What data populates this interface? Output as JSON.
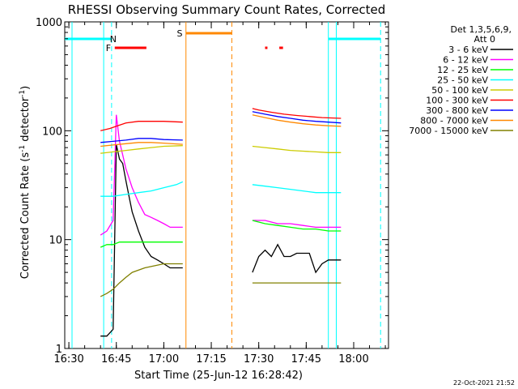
{
  "chart_data": {
    "type": "line",
    "title": "RHESSI Observing Summary Count Rates, Corrected",
    "xlabel": "Start Time (25-Jun-12 16:28:42)",
    "ylabel_main": "Corrected Count Rate (s",
    "ylabel_sup1": "-1",
    "ylabel_mid": " detector",
    "ylabel_sup2": "-1",
    "ylabel_end": ")",
    "y_scale": "log",
    "ylim": [
      1,
      1000
    ],
    "xlim": [
      "16:28:42",
      "18:11:00"
    ],
    "x_ticks": [
      "16:30",
      "16:45",
      "17:00",
      "17:15",
      "17:30",
      "17:45",
      "18:00"
    ],
    "y_ticks": [
      "1",
      "10",
      "100",
      "1000"
    ],
    "timestamp": "22-Oct-2021 21:52",
    "legend_header": [
      "Det 1,3,5,6,9,",
      "Att 0"
    ],
    "series": [
      {
        "name": "3 - 6 keV",
        "color": "#000000"
      },
      {
        "name": "6 - 12 keV",
        "color": "#ff00ff"
      },
      {
        "name": "12 - 25 keV",
        "color": "#00ff00"
      },
      {
        "name": "25 - 50 keV",
        "color": "#00ffff"
      },
      {
        "name": "50 - 100 keV",
        "color": "#cccc00"
      },
      {
        "name": "100 - 300 keV",
        "color": "#ff0000"
      },
      {
        "name": "300 - 800 keV",
        "color": "#0000ff"
      },
      {
        "name": "800 - 7000 keV",
        "color": "#ff8800"
      },
      {
        "name": "7000 - 15000 keV",
        "color": "#808000"
      }
    ],
    "segments": [
      {
        "range": [
          "16:40",
          "17:06"
        ],
        "values": {
          "3 - 6 keV": [
            [
              "16:40",
              1.3
            ],
            [
              "16:42",
              1.3
            ],
            [
              "16:44",
              1.5
            ],
            [
              "16:45",
              75
            ],
            [
              "16:46",
              55
            ],
            [
              "16:47",
              50
            ],
            [
              "16:48",
              35
            ],
            [
              "16:49",
              25
            ],
            [
              "16:50",
              18
            ],
            [
              "16:52",
              12
            ],
            [
              "16:54",
              8.5
            ],
            [
              "16:56",
              7
            ],
            [
              "16:58",
              6.5
            ],
            [
              "17:00",
              6
            ],
            [
              "17:02",
              5.5
            ],
            [
              "17:04",
              5.5
            ],
            [
              "17:06",
              5.5
            ]
          ],
          "6 - 12 keV": [
            [
              "16:40",
              11
            ],
            [
              "16:42",
              12
            ],
            [
              "16:44",
              15
            ],
            [
              "16:45",
              140
            ],
            [
              "16:46",
              80
            ],
            [
              "16:47",
              60
            ],
            [
              "16:48",
              45
            ],
            [
              "16:50",
              30
            ],
            [
              "16:52",
              22
            ],
            [
              "16:54",
              17
            ],
            [
              "16:56",
              16
            ],
            [
              "16:58",
              15
            ],
            [
              "17:00",
              14
            ],
            [
              "17:02",
              13
            ],
            [
              "17:04",
              13
            ],
            [
              "17:06",
              13
            ]
          ],
          "12 - 25 keV": [
            [
              "16:40",
              8.5
            ],
            [
              "16:42",
              9
            ],
            [
              "16:44",
              9
            ],
            [
              "16:46",
              9.5
            ],
            [
              "16:50",
              9.5
            ],
            [
              "16:55",
              9.5
            ],
            [
              "17:00",
              9.5
            ],
            [
              "17:06",
              9.5
            ]
          ],
          "25 - 50 keV": [
            [
              "16:40",
              25
            ],
            [
              "16:44",
              25
            ],
            [
              "16:48",
              26
            ],
            [
              "16:52",
              27
            ],
            [
              "16:56",
              28
            ],
            [
              "17:00",
              30
            ],
            [
              "17:04",
              32
            ],
            [
              "17:06",
              34
            ]
          ],
          "50 - 100 keV": [
            [
              "16:40",
              62
            ],
            [
              "16:44",
              64
            ],
            [
              "16:48",
              66
            ],
            [
              "16:52",
              68
            ],
            [
              "16:56",
              70
            ],
            [
              "17:00",
              72
            ],
            [
              "17:06",
              73
            ]
          ],
          "100 - 300 keV": [
            [
              "16:40",
              100
            ],
            [
              "16:43",
              105
            ],
            [
              "16:45",
              110
            ],
            [
              "16:48",
              118
            ],
            [
              "16:52",
              122
            ],
            [
              "16:56",
              122
            ],
            [
              "17:00",
              122
            ],
            [
              "17:06",
              120
            ]
          ],
          "300 - 800 keV": [
            [
              "16:40",
              78
            ],
            [
              "16:44",
              80
            ],
            [
              "16:48",
              82
            ],
            [
              "16:52",
              85
            ],
            [
              "16:56",
              85
            ],
            [
              "17:00",
              83
            ],
            [
              "17:06",
              82
            ]
          ],
          "800 - 7000 keV": [
            [
              "16:40",
              72
            ],
            [
              "16:44",
              74
            ],
            [
              "16:48",
              76
            ],
            [
              "16:52",
              78
            ],
            [
              "16:56",
              78
            ],
            [
              "17:00",
              77
            ],
            [
              "17:06",
              75
            ]
          ],
          "7000 - 15000 keV": [
            [
              "16:40",
              3
            ],
            [
              "16:42",
              3.2
            ],
            [
              "16:44",
              3.5
            ],
            [
              "16:46",
              4
            ],
            [
              "16:48",
              4.5
            ],
            [
              "16:50",
              5
            ],
            [
              "16:54",
              5.5
            ],
            [
              "17:00",
              6
            ],
            [
              "17:06",
              6
            ]
          ]
        }
      },
      {
        "range": [
          "17:28",
          "17:56"
        ],
        "values": {
          "3 - 6 keV": [
            [
              "17:28",
              5
            ],
            [
              "17:30",
              7
            ],
            [
              "17:32",
              8
            ],
            [
              "17:34",
              7
            ],
            [
              "17:36",
              9
            ],
            [
              "17:38",
              7
            ],
            [
              "17:40",
              7
            ],
            [
              "17:42",
              7.5
            ],
            [
              "17:44",
              7.5
            ],
            [
              "17:46",
              7.5
            ],
            [
              "17:48",
              5
            ],
            [
              "17:50",
              6
            ],
            [
              "17:52",
              6.5
            ],
            [
              "17:54",
              6.5
            ],
            [
              "17:56",
              6.5
            ]
          ],
          "6 - 12 keV": [
            [
              "17:28",
              15
            ],
            [
              "17:32",
              15
            ],
            [
              "17:36",
              14
            ],
            [
              "17:40",
              14
            ],
            [
              "17:44",
              13.5
            ],
            [
              "17:48",
              13
            ],
            [
              "17:52",
              13
            ],
            [
              "17:56",
              13
            ]
          ],
          "12 - 25 keV": [
            [
              "17:28",
              15
            ],
            [
              "17:32",
              14
            ],
            [
              "17:36",
              13.5
            ],
            [
              "17:40",
              13
            ],
            [
              "17:44",
              12.5
            ],
            [
              "17:48",
              12.5
            ],
            [
              "17:52",
              12
            ],
            [
              "17:56",
              12
            ]
          ],
          "25 - 50 keV": [
            [
              "17:28",
              32
            ],
            [
              "17:32",
              31
            ],
            [
              "17:36",
              30
            ],
            [
              "17:40",
              29
            ],
            [
              "17:44",
              28
            ],
            [
              "17:48",
              27
            ],
            [
              "17:52",
              27
            ],
            [
              "17:56",
              27
            ]
          ],
          "50 - 100 keV": [
            [
              "17:28",
              72
            ],
            [
              "17:32",
              70
            ],
            [
              "17:36",
              68
            ],
            [
              "17:40",
              66
            ],
            [
              "17:44",
              65
            ],
            [
              "17:48",
              64
            ],
            [
              "17:52",
              63
            ],
            [
              "17:56",
              63
            ]
          ],
          "100 - 300 keV": [
            [
              "17:28",
              160
            ],
            [
              "17:30",
              155
            ],
            [
              "17:34",
              148
            ],
            [
              "17:38",
              142
            ],
            [
              "17:42",
              138
            ],
            [
              "17:46",
              135
            ],
            [
              "17:50",
              132
            ],
            [
              "17:56",
              130
            ]
          ],
          "300 - 800 keV": [
            [
              "17:28",
              150
            ],
            [
              "17:32",
              142
            ],
            [
              "17:36",
              135
            ],
            [
              "17:40",
              130
            ],
            [
              "17:44",
              125
            ],
            [
              "17:48",
              122
            ],
            [
              "17:52",
              120
            ],
            [
              "17:56",
              118
            ]
          ],
          "800 - 7000 keV": [
            [
              "17:28",
              140
            ],
            [
              "17:32",
              132
            ],
            [
              "17:36",
              125
            ],
            [
              "17:40",
              120
            ],
            [
              "17:44",
              116
            ],
            [
              "17:48",
              113
            ],
            [
              "17:52",
              111
            ],
            [
              "17:56",
              110
            ]
          ],
          "7000 - 15000 keV": [
            [
              "17:28",
              4
            ],
            [
              "17:32",
              4
            ],
            [
              "17:36",
              4
            ],
            [
              "17:40",
              4
            ],
            [
              "17:44",
              4
            ],
            [
              "17:48",
              4
            ],
            [
              "17:52",
              4
            ],
            [
              "17:56",
              4
            ]
          ]
        }
      }
    ],
    "flags": [
      {
        "label": "N",
        "color": "#00ffff",
        "spans": [
          [
            "16:28:42",
            "16:43:30"
          ],
          [
            "17:52:00",
            "18:08:30"
          ]
        ],
        "label_at": "16:44:00"
      },
      {
        "label": "F",
        "color": "#ff0000",
        "spans": [
          [
            "16:44:30",
            "16:54:30"
          ]
        ],
        "label_at": "16:42:30"
      },
      {
        "label": "S",
        "color": "#ff8800",
        "spans": [
          [
            "17:07:00",
            "17:21:30"
          ]
        ],
        "label_at": "17:05:00"
      },
      {
        "label": "",
        "color": "#ff0000",
        "spans": [
          [
            "17:32:00",
            "17:32:45"
          ],
          [
            "17:36:30",
            "17:37:40"
          ]
        ],
        "label_at": ""
      }
    ],
    "vertical_markers": [
      {
        "color": "#00ffff",
        "style": "dashed",
        "t": "16:43:30"
      },
      {
        "color": "#ff8800",
        "style": "solid",
        "t": "17:07:00"
      },
      {
        "color": "#ff8800",
        "style": "dashed",
        "t": "17:21:30"
      },
      {
        "color": "#00ffff",
        "style": "solid",
        "t": "17:52:00"
      },
      {
        "color": "#00ffff",
        "style": "dashed",
        "t": "18:08:30"
      },
      {
        "color": "#00ffff",
        "style": "solid",
        "t": "16:41:00"
      },
      {
        "color": "#00ffff",
        "style": "solid",
        "t": "17:54:30"
      },
      {
        "color": "#00ffff",
        "style": "solid",
        "t": "16:31:00"
      }
    ]
  }
}
